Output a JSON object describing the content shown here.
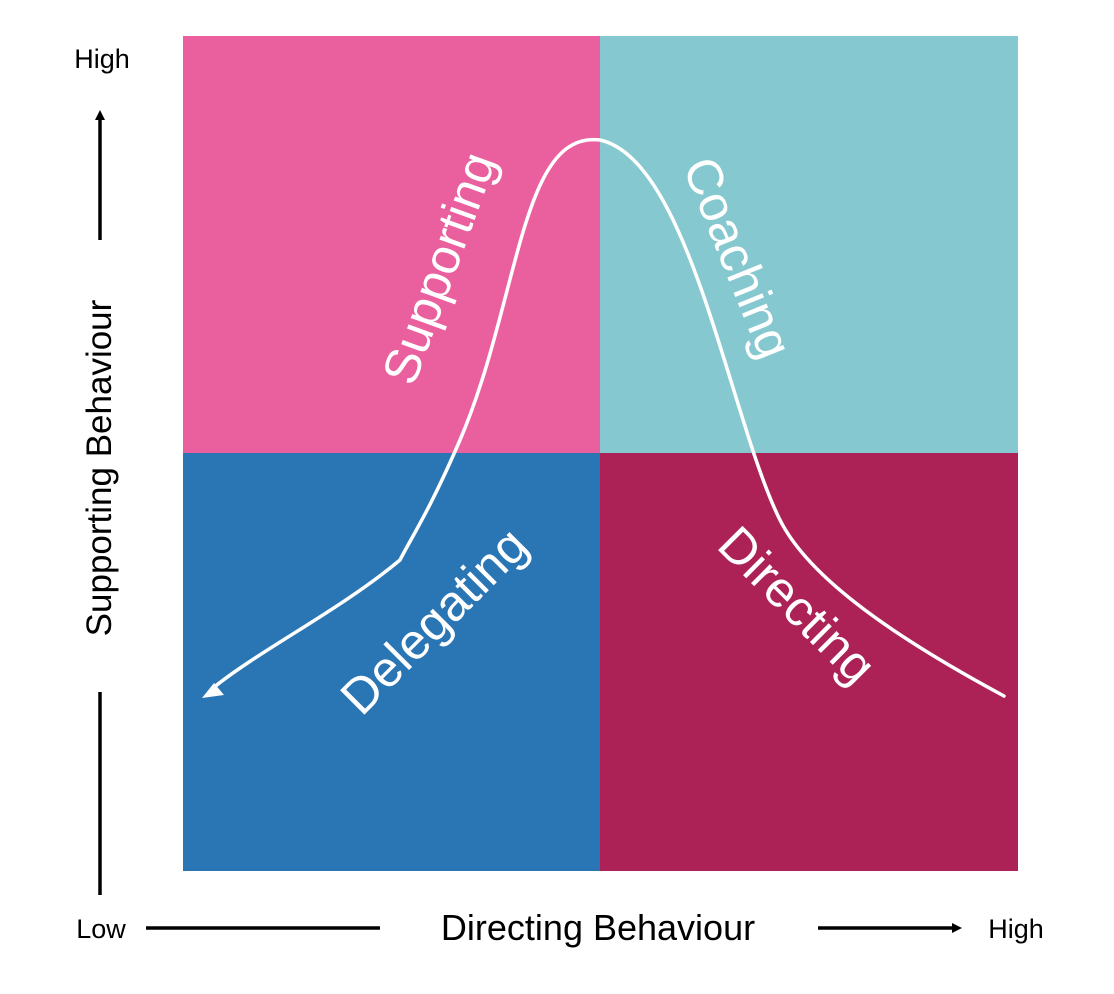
{
  "diagram": {
    "quadrants": {
      "top_left": {
        "label": "Supporting",
        "color": "#EA5F9E"
      },
      "top_right": {
        "label": "Coaching",
        "color": "#86C8CF"
      },
      "bottom_left": {
        "label": "Delegating",
        "color": "#2A75B4"
      },
      "bottom_right": {
        "label": "Directing",
        "color": "#AC2256"
      }
    },
    "quadrant_label_color": "#FFFFFF",
    "curve_color": "#FFFFFF",
    "axis_color": "#000000"
  },
  "y_axis": {
    "title": "Supporting Behaviour",
    "high_label": "High"
  },
  "x_axis": {
    "title": "Directing Behaviour",
    "low_label": "Low",
    "high_label": "High"
  }
}
